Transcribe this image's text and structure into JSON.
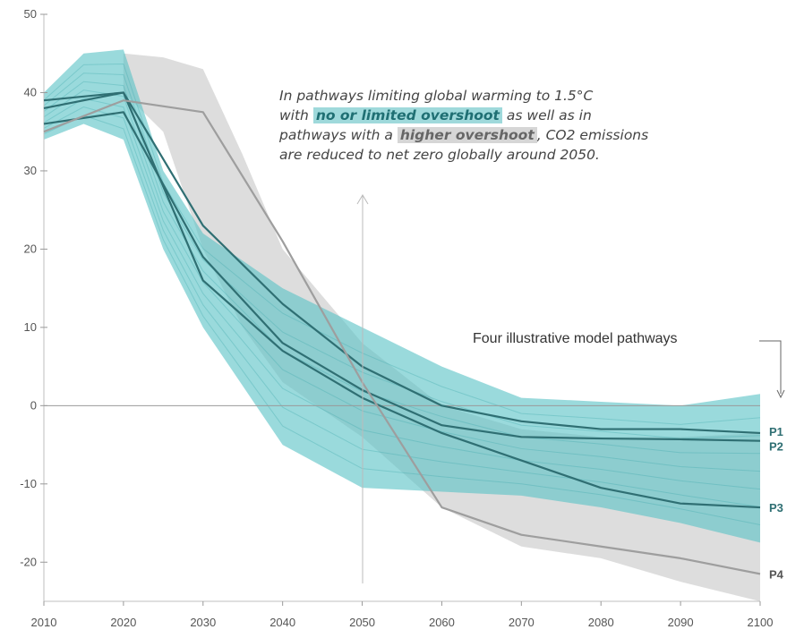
{
  "chart_data": {
    "type": "line",
    "ylim": [
      -25,
      50
    ],
    "xlim": [
      2010,
      2100
    ],
    "y_ticks": [
      50,
      40,
      30,
      20,
      10,
      0,
      -10,
      -20
    ],
    "x_ticks": [
      2010,
      2020,
      2030,
      2040,
      2050,
      2060,
      2070,
      2080,
      2090,
      2100
    ],
    "grid": false,
    "x": [
      2010,
      2020,
      2030,
      2040,
      2050,
      2060,
      2070,
      2080,
      2090,
      2100
    ],
    "series": [
      {
        "name": "P1",
        "color": "#2f6f73",
        "values": [
          39,
          40,
          23,
          13,
          5,
          0,
          -2,
          -3,
          -3,
          -3.5
        ]
      },
      {
        "name": "P2",
        "color": "#2f6f73",
        "values": [
          36,
          37.5,
          19,
          8,
          2,
          -2.5,
          -4,
          -4.2,
          -4.3,
          -4.5
        ]
      },
      {
        "name": "P3",
        "color": "#2f6f73",
        "values": [
          38,
          40,
          16,
          7,
          1,
          -3.5,
          -7,
          -10.5,
          -12.5,
          -13
        ]
      },
      {
        "name": "P4",
        "color": "#9e9e9e",
        "values": [
          35,
          39,
          37.5,
          21,
          3,
          -13,
          -16.5,
          -18,
          -19.5,
          -21.5
        ]
      }
    ],
    "bands": [
      {
        "name": "no-or-limited-overshoot",
        "color": "#5cc3c6",
        "x": [
          2010,
          2015,
          2020,
          2025,
          2030,
          2040,
          2050,
          2060,
          2070,
          2080,
          2090,
          2100
        ],
        "upper": [
          40,
          45,
          45.5,
          30,
          22,
          15,
          10,
          5,
          1,
          0.5,
          0,
          1.5
        ],
        "lower": [
          34,
          36,
          34,
          20,
          10,
          -5,
          -10.5,
          -11,
          -11.5,
          -13,
          -15,
          -17.5
        ]
      },
      {
        "name": "higher-overshoot",
        "color": "#d9d9d9",
        "x": [
          2020,
          2025,
          2030,
          2035,
          2040,
          2050,
          2060,
          2070,
          2080,
          2090,
          2100
        ],
        "upper": [
          45,
          44.5,
          43,
          32,
          20,
          8,
          0,
          -3,
          -4,
          -4,
          -3.5
        ],
        "lower": [
          40,
          35,
          20,
          10,
          3,
          -4,
          -13,
          -18,
          -19.5,
          -22.5,
          -25
        ]
      }
    ],
    "annotation": {
      "line1": "In pathways limiting global warming to 1.5°C",
      "line2_pre": "with ",
      "highlight1": "no or limited overshoot",
      "line2_post": " as well as in",
      "line3_pre": "pathways with a ",
      "highlight2": "higher overshoot",
      "line3_post": ", CO2 emissions",
      "line4": "are reduced to net zero globally around 2050."
    },
    "model_note": "Four illustrative model pathways"
  }
}
